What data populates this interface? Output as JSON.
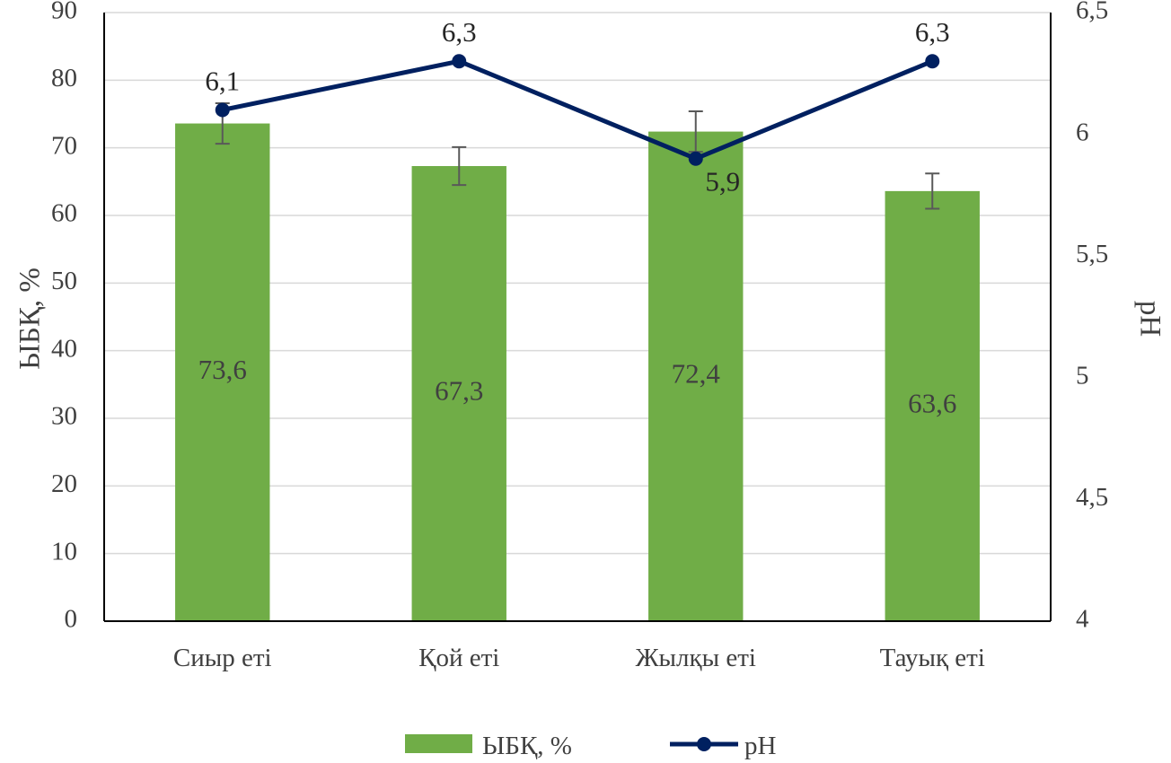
{
  "chart_data": {
    "type": "bar",
    "categories": [
      "Сиыр еті",
      "Қой еті",
      "Жылқы еті",
      "Тауық еті"
    ],
    "series": [
      {
        "name": "ЫБҚ, %",
        "type": "bar",
        "axis": "left",
        "values": [
          73.6,
          67.3,
          72.4,
          63.6
        ],
        "value_labels": [
          "73,6",
          "67,3",
          "72,4",
          "63,6"
        ],
        "error_bars": [
          3,
          2.8,
          3,
          2.6
        ],
        "color": "#70ad47"
      },
      {
        "name": "pH",
        "type": "line",
        "axis": "right",
        "values": [
          6.1,
          6.3,
          5.9,
          6.3
        ],
        "value_labels": [
          "6,1",
          "6,3",
          "5,9",
          "6,3"
        ],
        "color": "#002060"
      }
    ],
    "ylabel": "ЫБҚ, %",
    "ylabel_right": "pH",
    "ylim": [
      0,
      90
    ],
    "ylim_right": [
      4,
      6.5
    ],
    "yticks": [
      "0",
      "10",
      "20",
      "30",
      "40",
      "50",
      "60",
      "70",
      "80",
      "90"
    ],
    "yticks_right": [
      "4",
      "4,5",
      "5",
      "5,5",
      "6",
      "6,5"
    ],
    "grid": true,
    "legend_position": "bottom"
  }
}
